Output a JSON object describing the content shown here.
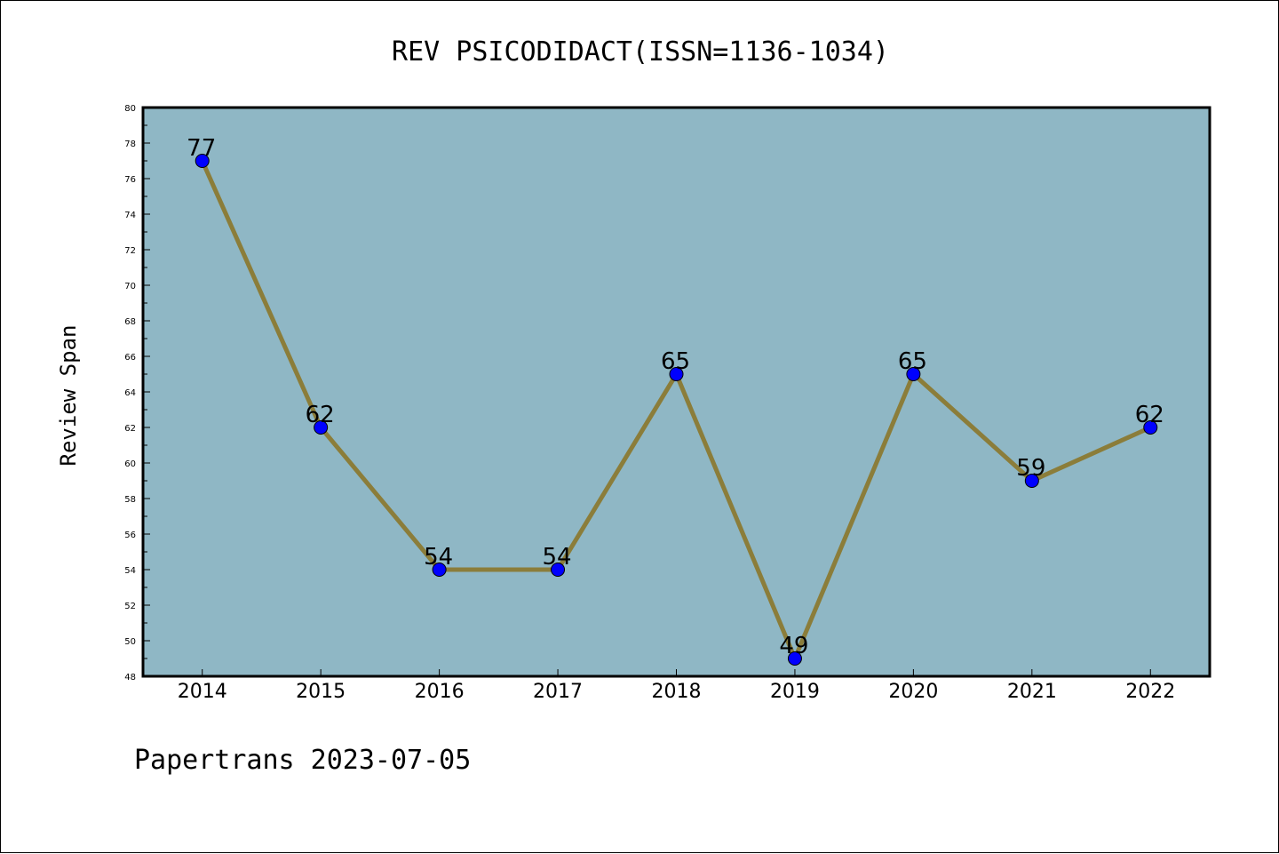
{
  "footer": {
    "text": "Papertrans 2023-07-05"
  },
  "colors": {
    "plot_background": "#8fb7c5",
    "line": "#8b7d3a",
    "marker": "#0000ff",
    "axis": "#000000"
  },
  "chart_data": {
    "type": "line",
    "title": "REV PSICODIDACT(ISSN=1136-1034)",
    "xlabel": "",
    "ylabel": "Review Span",
    "categories": [
      "2014",
      "2015",
      "2016",
      "2017",
      "2018",
      "2019",
      "2020",
      "2021",
      "2022"
    ],
    "series": [
      {
        "values": [
          77,
          62,
          54,
          54,
          65,
          49,
          65,
          59,
          62
        ]
      }
    ],
    "ylim": [
      48,
      80
    ],
    "yticks": [
      48,
      50,
      52,
      54,
      56,
      58,
      60,
      62,
      64,
      66,
      68,
      70,
      72,
      74,
      76,
      78,
      80
    ],
    "data_labels": [
      "77",
      "62",
      "54",
      "54",
      "65",
      "49",
      "65",
      "59",
      "62"
    ],
    "grid": false,
    "legend": "none"
  }
}
